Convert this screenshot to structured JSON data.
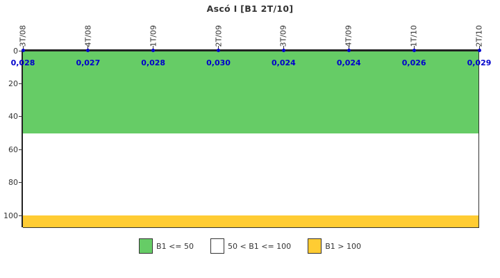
{
  "title": "Ascó I [B1 2T/10]",
  "chart_data": {
    "type": "line",
    "title": "Ascó I [B1 2T/10]",
    "x": [
      "3T/08",
      "4T/08",
      "1T/09",
      "2T/09",
      "3T/09",
      "4T/09",
      "1T/10",
      "2T/10"
    ],
    "values": [
      0.028,
      0.027,
      0.028,
      0.03,
      0.024,
      0.024,
      0.026,
      0.029
    ],
    "value_labels": [
      "0,028",
      "0,027",
      "0,028",
      "0,030",
      "0,024",
      "0,024",
      "0,026",
      "0,029"
    ],
    "xlabel": "",
    "ylabel": "",
    "y_ticks": [
      0,
      20,
      40,
      60,
      80,
      100
    ],
    "ylim": [
      0,
      107
    ],
    "y_inverted": true,
    "grid": false,
    "legend_position": "bottom",
    "bands": [
      {
        "label": "B1 <= 50",
        "from": 0,
        "to": 50,
        "color": "#66CC66"
      },
      {
        "label": "50 < B1 <= 100",
        "from": 50,
        "to": 100,
        "color": "#FFFFFF"
      },
      {
        "label": "B1 > 100",
        "from": 100,
        "to": 107,
        "color": "#FFCC33"
      }
    ]
  },
  "legend": {
    "items": [
      {
        "label": "B1 <= 50",
        "color": "#66CC66"
      },
      {
        "label": "50 < B1 <= 100",
        "color": "#FFFFFF"
      },
      {
        "label": "B1 > 100",
        "color": "#FFCC33"
      }
    ]
  },
  "colors": {
    "series_point": "#0000CC",
    "value_text": "#0000CC",
    "axis": "#222222",
    "band_border": "#333333",
    "tick_text": "#333333",
    "title_text": "#333333",
    "background": "#FFFFFF"
  }
}
